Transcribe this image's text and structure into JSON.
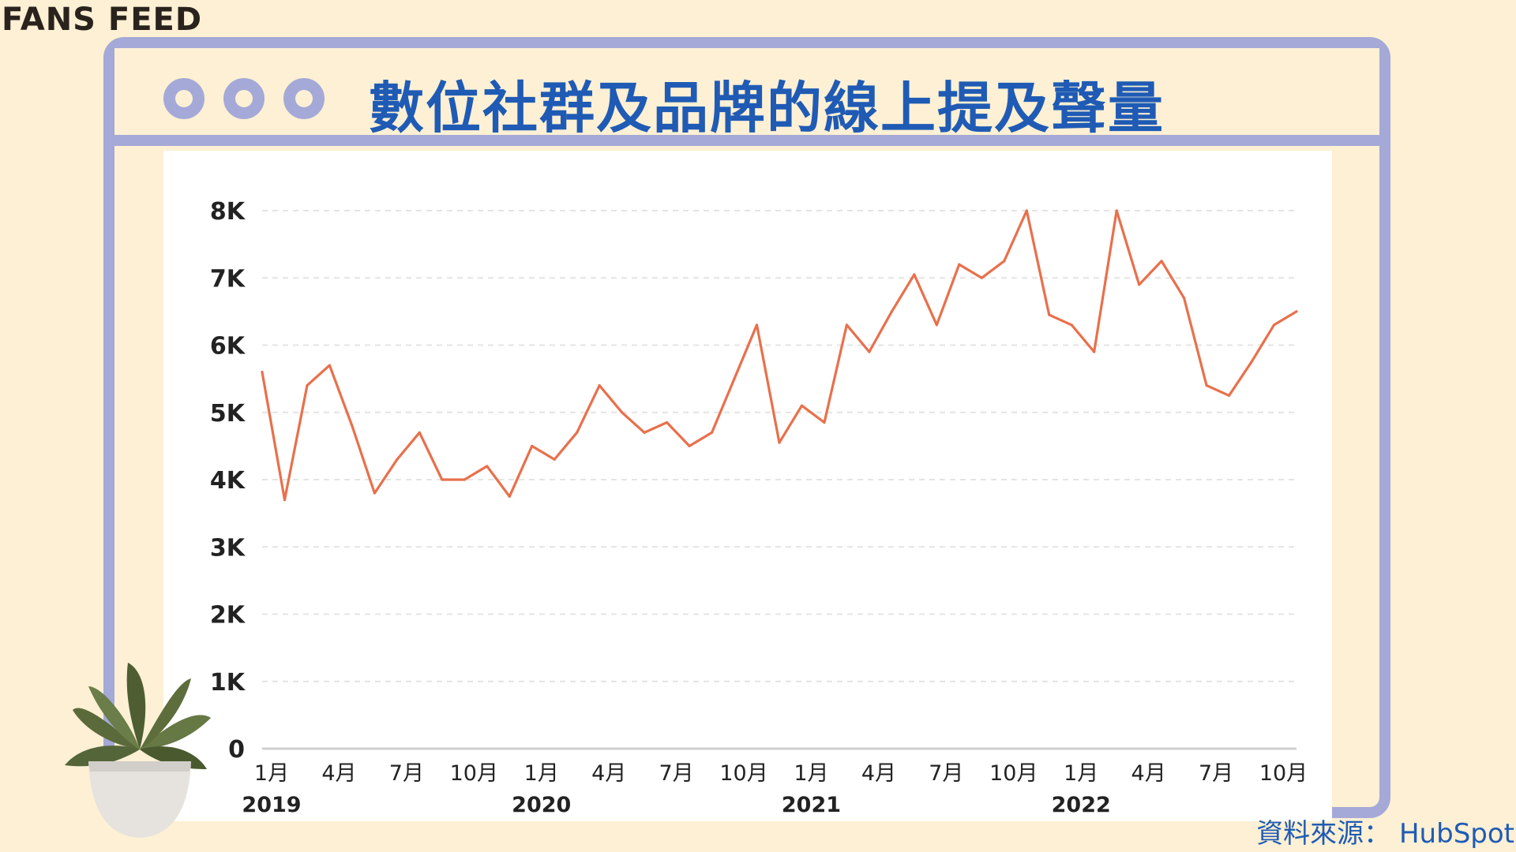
{
  "brand": "FANS FEED",
  "title": "數位社群及品牌的線上提及聲量",
  "source": "資料來源： HubSpot",
  "colors": {
    "line": "#e8704c",
    "frame": "#a4a9d7",
    "title": "#1f5bb5",
    "background": "#fdf0d4"
  },
  "icons": [
    "window-dot-icon",
    "plant-pot-icon"
  ],
  "chart_data": {
    "type": "line",
    "title": "",
    "xlabel": "",
    "ylabel": "",
    "ylim": [
      0,
      8000
    ],
    "yticks": [
      0,
      1000,
      2000,
      3000,
      4000,
      5000,
      6000,
      7000,
      8000
    ],
    "ytick_labels": [
      "0",
      "1K",
      "2K",
      "3K",
      "4K",
      "5K",
      "6K",
      "7K",
      "8K"
    ],
    "grid": "horizontal dashed",
    "x": [
      "2019-01",
      "2019-02",
      "2019-03",
      "2019-04",
      "2019-05",
      "2019-06",
      "2019-07",
      "2019-08",
      "2019-09",
      "2019-10",
      "2019-11",
      "2019-12",
      "2020-01",
      "2020-02",
      "2020-03",
      "2020-04",
      "2020-05",
      "2020-06",
      "2020-07",
      "2020-08",
      "2020-09",
      "2020-10",
      "2020-11",
      "2020-12",
      "2021-01",
      "2021-02",
      "2021-03",
      "2021-04",
      "2021-05",
      "2021-06",
      "2021-07",
      "2021-08",
      "2021-09",
      "2021-10",
      "2021-11",
      "2021-12",
      "2022-01",
      "2022-02",
      "2022-03",
      "2022-04",
      "2022-05",
      "2022-06",
      "2022-07",
      "2022-08",
      "2022-09",
      "2022-10",
      "2022-11"
    ],
    "xtick_groups": [
      {
        "year": "2019",
        "months": [
          "1月",
          "4月",
          "7月",
          "10月"
        ]
      },
      {
        "year": "2020",
        "months": [
          "1月",
          "4月",
          "7月",
          "10月"
        ]
      },
      {
        "year": "2021",
        "months": [
          "1月",
          "4月",
          "7月",
          "10月"
        ]
      },
      {
        "year": "2022",
        "months": [
          "1月",
          "4月",
          "7月",
          "10月"
        ]
      }
    ],
    "series": [
      {
        "values": [
          5600,
          3700,
          5400,
          5700,
          4800,
          3800,
          4300,
          4700,
          4000,
          4000,
          4200,
          3750,
          4500,
          4300,
          4700,
          5400,
          5000,
          4700,
          4850,
          4500,
          4700,
          5500,
          6300,
          4550,
          5100,
          4850,
          6300,
          5900,
          6500,
          7050,
          6300,
          7200,
          7000,
          7250,
          8000,
          6450,
          6300,
          5900,
          8000,
          6900,
          7250,
          6700,
          5400,
          5250,
          5750,
          6300,
          6500
        ]
      }
    ]
  }
}
